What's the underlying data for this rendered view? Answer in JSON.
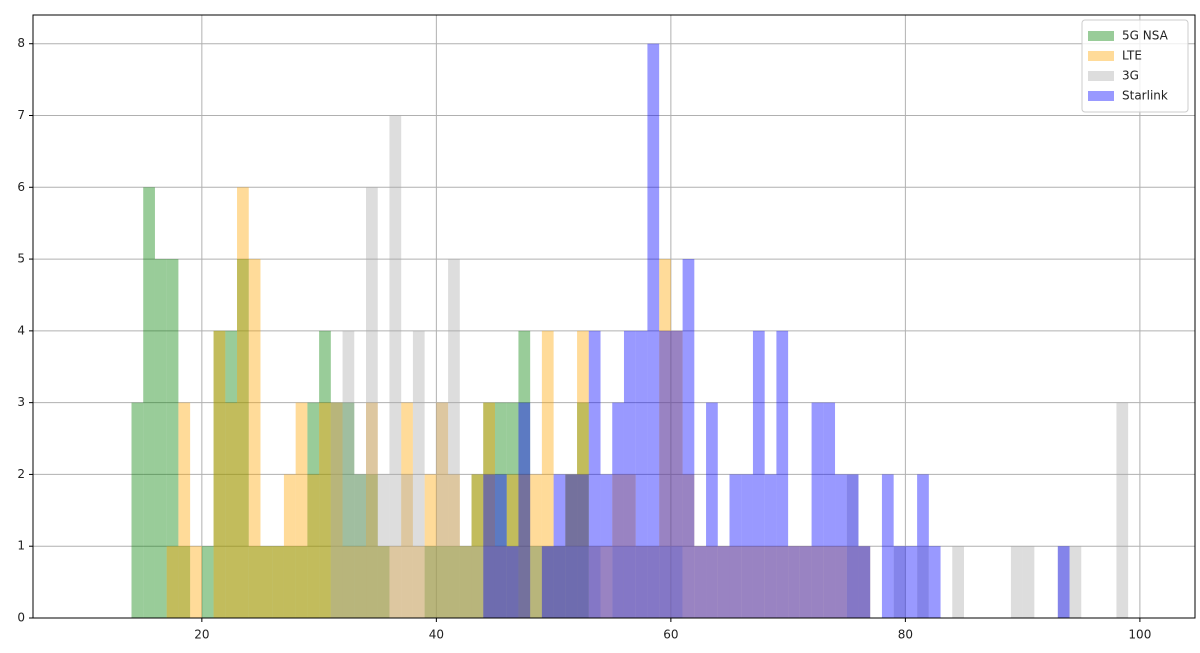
{
  "chart_data": {
    "type": "histogram",
    "xlim": [
      5.6,
      104.7
    ],
    "ylim": [
      0,
      8.4
    ],
    "xticks": [
      20,
      40,
      60,
      80,
      100
    ],
    "yticks": [
      0,
      1,
      2,
      3,
      4,
      5,
      6,
      7,
      8
    ],
    "grid": true,
    "alpha": 0.4,
    "legend": "upper right",
    "series": [
      {
        "name": "5G NSA",
        "color": "green",
        "bins": [
          14,
          15,
          16,
          17,
          18,
          19,
          20,
          21,
          22,
          23,
          24,
          25,
          26,
          27,
          28,
          29,
          30,
          31,
          32,
          33,
          34,
          35,
          36,
          37,
          38,
          39,
          40,
          41,
          42,
          43,
          44,
          45,
          46,
          47,
          48,
          49,
          50,
          51,
          52,
          53
        ],
        "values": [
          3,
          6,
          5,
          5,
          1,
          0,
          1,
          4,
          4,
          5,
          1,
          1,
          1,
          1,
          1,
          3,
          4,
          3,
          3,
          2,
          2,
          1,
          0,
          0,
          0,
          1,
          1,
          1,
          1,
          2,
          3,
          3,
          3,
          4,
          1,
          1,
          1,
          2,
          3
        ]
      },
      {
        "name": "LTE",
        "color": "orange",
        "bins": [
          17,
          18,
          19,
          20,
          21,
          22,
          23,
          24,
          25,
          26,
          27,
          28,
          29,
          30,
          31,
          32,
          33,
          34,
          35,
          36,
          37,
          38,
          39,
          40,
          41,
          42,
          43,
          44,
          45,
          46,
          47,
          48,
          49,
          50,
          51,
          52,
          53,
          54,
          55,
          56,
          57,
          58,
          59,
          60,
          61,
          62,
          63,
          64,
          65,
          66,
          67,
          68,
          69,
          70,
          71,
          72,
          73,
          74,
          75,
          76,
          77
        ],
        "values": [
          1,
          3,
          1,
          0,
          4,
          3,
          6,
          5,
          1,
          1,
          2,
          3,
          2,
          3,
          3,
          1,
          1,
          3,
          1,
          1,
          3,
          1,
          2,
          3,
          2,
          1,
          2,
          3,
          1,
          2,
          2,
          2,
          4,
          1,
          2,
          4,
          1,
          1,
          2,
          2,
          1,
          1,
          5,
          4,
          2,
          1,
          1,
          1,
          1,
          1,
          1,
          1,
          1,
          1,
          1,
          1,
          1,
          1,
          1,
          1
        ]
      },
      {
        "name": "3G",
        "color": "darkgray",
        "bins": [
          31,
          32,
          33,
          34,
          35,
          36,
          37,
          38,
          39,
          40,
          41,
          42,
          43,
          44,
          45,
          46,
          47,
          48,
          49,
          50,
          51,
          52,
          53,
          54,
          55,
          56,
          57,
          58,
          59,
          60,
          61,
          62,
          63,
          64,
          65,
          66,
          67,
          68,
          69,
          70,
          71,
          72,
          73,
          74,
          75,
          76,
          77,
          78,
          79,
          80,
          81,
          82,
          83,
          84,
          85,
          86,
          87,
          88,
          89,
          90,
          91,
          92,
          93,
          94,
          95,
          96,
          97,
          98,
          99
        ],
        "values": [
          3,
          4,
          2,
          6,
          2,
          7,
          2,
          4,
          1,
          3,
          5,
          1,
          1,
          1,
          1,
          1,
          0,
          1,
          1,
          1,
          1,
          1,
          1,
          0,
          1,
          1,
          1,
          1,
          1,
          1,
          0,
          0,
          0,
          0,
          0,
          0,
          0,
          0,
          0,
          0,
          0,
          0,
          0,
          0,
          2,
          1,
          0,
          0,
          1,
          0,
          1,
          0,
          0,
          1,
          0,
          0,
          0,
          0,
          1,
          1,
          0,
          0,
          1,
          1,
          0,
          0,
          0,
          3
        ]
      },
      {
        "name": "Starlink",
        "color": "blue",
        "bins": [
          44,
          45,
          46,
          47,
          48,
          49,
          50,
          51,
          52,
          53,
          54,
          55,
          56,
          57,
          58,
          59,
          60,
          61,
          62,
          63,
          64,
          65,
          66,
          67,
          68,
          69,
          70,
          71,
          72,
          73,
          74,
          75,
          76,
          77,
          78,
          79,
          80,
          81,
          82,
          83,
          84,
          85,
          86,
          87,
          88,
          89,
          90,
          91,
          92,
          93,
          94
        ],
        "values": [
          2,
          2,
          1,
          3,
          0,
          1,
          2,
          2,
          2,
          4,
          2,
          3,
          4,
          4,
          8,
          4,
          4,
          5,
          1,
          3,
          1,
          2,
          2,
          4,
          2,
          4,
          1,
          1,
          3,
          3,
          2,
          2,
          1,
          0,
          2,
          1,
          1,
          2,
          1,
          0,
          0,
          0,
          0,
          0,
          0,
          0,
          0,
          0,
          0,
          1
        ]
      }
    ]
  }
}
